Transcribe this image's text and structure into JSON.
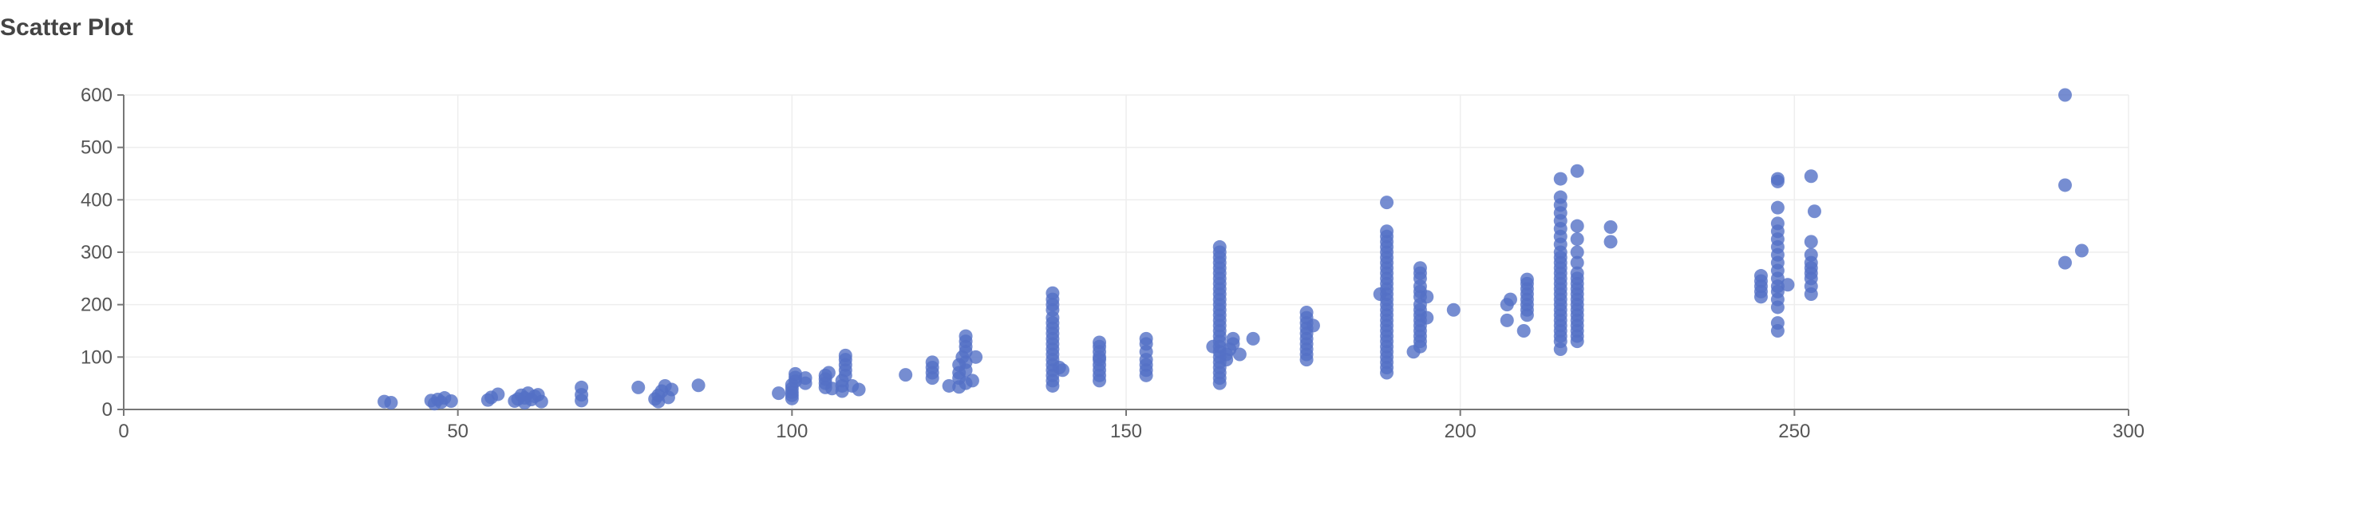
{
  "chart_data": {
    "type": "scatter",
    "title": "Scatter Plot",
    "xlabel": "",
    "ylabel": "",
    "xlim": [
      0,
      300
    ],
    "ylim": [
      0,
      600
    ],
    "x_ticks": [
      0,
      50,
      100,
      150,
      200,
      250,
      300
    ],
    "y_ticks": [
      0,
      100,
      200,
      300,
      400,
      500,
      600
    ],
    "grid": true,
    "colors": {
      "point": "#5470c6"
    },
    "points": [
      [
        39,
        15
      ],
      [
        40,
        13
      ],
      [
        46,
        17
      ],
      [
        46.5,
        11
      ],
      [
        47,
        19
      ],
      [
        47.5,
        14
      ],
      [
        48,
        22
      ],
      [
        49,
        16
      ],
      [
        54.5,
        18
      ],
      [
        55,
        23
      ],
      [
        56,
        29
      ],
      [
        58.5,
        16
      ],
      [
        59,
        20
      ],
      [
        59.5,
        27
      ],
      [
        60,
        13
      ],
      [
        60,
        22
      ],
      [
        60.5,
        31
      ],
      [
        61,
        19
      ],
      [
        61.5,
        25
      ],
      [
        62,
        28
      ],
      [
        62.5,
        15
      ],
      [
        68.5,
        17
      ],
      [
        68.5,
        28
      ],
      [
        68.5,
        42
      ],
      [
        77,
        42
      ],
      [
        79.5,
        20
      ],
      [
        80,
        15
      ],
      [
        80,
        27
      ],
      [
        80.5,
        35
      ],
      [
        81,
        45
      ],
      [
        81.5,
        23
      ],
      [
        82,
        38
      ],
      [
        86,
        46
      ],
      [
        98,
        31
      ],
      [
        100,
        21
      ],
      [
        100,
        27
      ],
      [
        100,
        33
      ],
      [
        100,
        40
      ],
      [
        100,
        47
      ],
      [
        100.5,
        54
      ],
      [
        100.5,
        61
      ],
      [
        100.5,
        68
      ],
      [
        102,
        50
      ],
      [
        102,
        60
      ],
      [
        105,
        42
      ],
      [
        105,
        50
      ],
      [
        105,
        58
      ],
      [
        105,
        65
      ],
      [
        105.5,
        70
      ],
      [
        106,
        40
      ],
      [
        107.5,
        35
      ],
      [
        107.5,
        45
      ],
      [
        107.5,
        55
      ],
      [
        108,
        65
      ],
      [
        108,
        75
      ],
      [
        108,
        85
      ],
      [
        108,
        95
      ],
      [
        108,
        103
      ],
      [
        109,
        45
      ],
      [
        110,
        38
      ],
      [
        117,
        66
      ],
      [
        121,
        60
      ],
      [
        121,
        70
      ],
      [
        121,
        80
      ],
      [
        121,
        90
      ],
      [
        123.5,
        45
      ],
      [
        125,
        43
      ],
      [
        125,
        60
      ],
      [
        125,
        70
      ],
      [
        125,
        85
      ],
      [
        125.5,
        100
      ],
      [
        126,
        50
      ],
      [
        126,
        75
      ],
      [
        126,
        90
      ],
      [
        126,
        110
      ],
      [
        126,
        120
      ],
      [
        126,
        130
      ],
      [
        126,
        140
      ],
      [
        127,
        55
      ],
      [
        127.5,
        100
      ],
      [
        139,
        45
      ],
      [
        139,
        55
      ],
      [
        139,
        65
      ],
      [
        139,
        75
      ],
      [
        139,
        85
      ],
      [
        139,
        95
      ],
      [
        139,
        105
      ],
      [
        139,
        115
      ],
      [
        139,
        125
      ],
      [
        139,
        135
      ],
      [
        139,
        145
      ],
      [
        139,
        155
      ],
      [
        139,
        165
      ],
      [
        139,
        175
      ],
      [
        139,
        190
      ],
      [
        139,
        200
      ],
      [
        139,
        210
      ],
      [
        139,
        222
      ],
      [
        140,
        80
      ],
      [
        140.5,
        75
      ],
      [
        146,
        55
      ],
      [
        146,
        65
      ],
      [
        146,
        75
      ],
      [
        146,
        85
      ],
      [
        146,
        95
      ],
      [
        146,
        100
      ],
      [
        146,
        110
      ],
      [
        146,
        120
      ],
      [
        146,
        128
      ],
      [
        153,
        65
      ],
      [
        153,
        75
      ],
      [
        153,
        85
      ],
      [
        153,
        95
      ],
      [
        153,
        110
      ],
      [
        153,
        125
      ],
      [
        153,
        135
      ],
      [
        163,
        120
      ],
      [
        164,
        50
      ],
      [
        164,
        60
      ],
      [
        164,
        70
      ],
      [
        164,
        80
      ],
      [
        164,
        90
      ],
      [
        164,
        100
      ],
      [
        164,
        110
      ],
      [
        164,
        120
      ],
      [
        164,
        130
      ],
      [
        164,
        140
      ],
      [
        164,
        150
      ],
      [
        164,
        160
      ],
      [
        164,
        170
      ],
      [
        164,
        180
      ],
      [
        164,
        190
      ],
      [
        164,
        200
      ],
      [
        164,
        210
      ],
      [
        164,
        220
      ],
      [
        164,
        230
      ],
      [
        164,
        240
      ],
      [
        164,
        250
      ],
      [
        164,
        260
      ],
      [
        164,
        270
      ],
      [
        164,
        280
      ],
      [
        164,
        290
      ],
      [
        164,
        300
      ],
      [
        164,
        310
      ],
      [
        165,
        95
      ],
      [
        165,
        105
      ],
      [
        165.5,
        115
      ],
      [
        166,
        125
      ],
      [
        166,
        135
      ],
      [
        167,
        105
      ],
      [
        169,
        135
      ],
      [
        177,
        95
      ],
      [
        177,
        105
      ],
      [
        177,
        115
      ],
      [
        177,
        125
      ],
      [
        177,
        135
      ],
      [
        177,
        145
      ],
      [
        177,
        155
      ],
      [
        177,
        165
      ],
      [
        177,
        175
      ],
      [
        177,
        185
      ],
      [
        178,
        160
      ],
      [
        188,
        220
      ],
      [
        189,
        70
      ],
      [
        189,
        80
      ],
      [
        189,
        90
      ],
      [
        189,
        100
      ],
      [
        189,
        110
      ],
      [
        189,
        120
      ],
      [
        189,
        130
      ],
      [
        189,
        140
      ],
      [
        189,
        150
      ],
      [
        189,
        160
      ],
      [
        189,
        170
      ],
      [
        189,
        180
      ],
      [
        189,
        190
      ],
      [
        189,
        200
      ],
      [
        189,
        210
      ],
      [
        189,
        220
      ],
      [
        189,
        230
      ],
      [
        189,
        240
      ],
      [
        189,
        250
      ],
      [
        189,
        260
      ],
      [
        189,
        270
      ],
      [
        189,
        280
      ],
      [
        189,
        290
      ],
      [
        189,
        300
      ],
      [
        189,
        310
      ],
      [
        189,
        320
      ],
      [
        189,
        330
      ],
      [
        189,
        340
      ],
      [
        189,
        395
      ],
      [
        193,
        110
      ],
      [
        194,
        120
      ],
      [
        194,
        130
      ],
      [
        194,
        140
      ],
      [
        194,
        150
      ],
      [
        194,
        160
      ],
      [
        194,
        170
      ],
      [
        194,
        180
      ],
      [
        194,
        190
      ],
      [
        194,
        200
      ],
      [
        194,
        215
      ],
      [
        194,
        225
      ],
      [
        194,
        235
      ],
      [
        194,
        250
      ],
      [
        194,
        260
      ],
      [
        194,
        270
      ],
      [
        195,
        215
      ],
      [
        195,
        175
      ],
      [
        199,
        190
      ],
      [
        207,
        170
      ],
      [
        207,
        200
      ],
      [
        207.5,
        210
      ],
      [
        209.5,
        150
      ],
      [
        210,
        180
      ],
      [
        210,
        190
      ],
      [
        210,
        200
      ],
      [
        210,
        210
      ],
      [
        210,
        220
      ],
      [
        210,
        230
      ],
      [
        210,
        240
      ],
      [
        210,
        248
      ],
      [
        215,
        115
      ],
      [
        215,
        130
      ],
      [
        215,
        140
      ],
      [
        215,
        150
      ],
      [
        215,
        160
      ],
      [
        215,
        170
      ],
      [
        215,
        180
      ],
      [
        215,
        190
      ],
      [
        215,
        200
      ],
      [
        215,
        210
      ],
      [
        215,
        220
      ],
      [
        215,
        230
      ],
      [
        215,
        240
      ],
      [
        215,
        250
      ],
      [
        215,
        260
      ],
      [
        215,
        270
      ],
      [
        215,
        280
      ],
      [
        215,
        290
      ],
      [
        215,
        300
      ],
      [
        215,
        315
      ],
      [
        215,
        330
      ],
      [
        215,
        345
      ],
      [
        215,
        360
      ],
      [
        215,
        375
      ],
      [
        215,
        390
      ],
      [
        215,
        405
      ],
      [
        215,
        440
      ],
      [
        217.5,
        130
      ],
      [
        217.5,
        140
      ],
      [
        217.5,
        150
      ],
      [
        217.5,
        160
      ],
      [
        217.5,
        170
      ],
      [
        217.5,
        180
      ],
      [
        217.5,
        190
      ],
      [
        217.5,
        200
      ],
      [
        217.5,
        210
      ],
      [
        217.5,
        220
      ],
      [
        217.5,
        230
      ],
      [
        217.5,
        240
      ],
      [
        217.5,
        250
      ],
      [
        217.5,
        260
      ],
      [
        217.5,
        280
      ],
      [
        217.5,
        300
      ],
      [
        217.5,
        325
      ],
      [
        217.5,
        350
      ],
      [
        217.5,
        455
      ],
      [
        222.5,
        320
      ],
      [
        222.5,
        348
      ],
      [
        245,
        215
      ],
      [
        245,
        225
      ],
      [
        245,
        235
      ],
      [
        245,
        245
      ],
      [
        245,
        255
      ],
      [
        247.5,
        150
      ],
      [
        247.5,
        165
      ],
      [
        247.5,
        195
      ],
      [
        247.5,
        210
      ],
      [
        247.5,
        225
      ],
      [
        247.5,
        235
      ],
      [
        247.5,
        250
      ],
      [
        247.5,
        265
      ],
      [
        247.5,
        280
      ],
      [
        247.5,
        295
      ],
      [
        247.5,
        310
      ],
      [
        247.5,
        325
      ],
      [
        247.5,
        340
      ],
      [
        247.5,
        355
      ],
      [
        247.5,
        385
      ],
      [
        247.5,
        435
      ],
      [
        247.5,
        440
      ],
      [
        249,
        238
      ],
      [
        252.5,
        220
      ],
      [
        252.5,
        235
      ],
      [
        252.5,
        250
      ],
      [
        252.5,
        260
      ],
      [
        252.5,
        270
      ],
      [
        252.5,
        280
      ],
      [
        252.5,
        295
      ],
      [
        252.5,
        320
      ],
      [
        253,
        378
      ],
      [
        252.5,
        445
      ],
      [
        290.5,
        280
      ],
      [
        290.5,
        428
      ],
      [
        290.5,
        600
      ],
      [
        293,
        303
      ]
    ]
  }
}
